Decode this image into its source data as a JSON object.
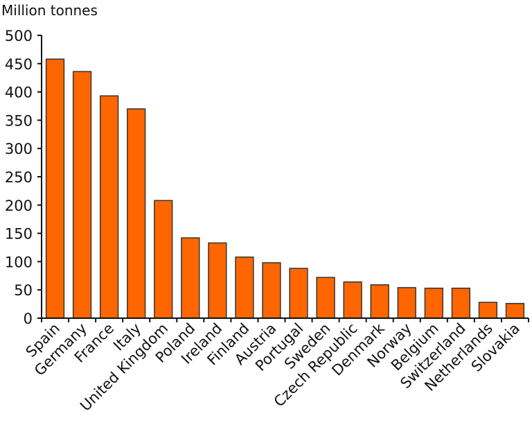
{
  "chart_data": {
    "type": "bar",
    "title": "",
    "ylabel": "Million tonnes",
    "xlabel": "",
    "ylim": [
      0,
      500
    ],
    "yticks": [
      0,
      50,
      100,
      150,
      200,
      250,
      300,
      350,
      400,
      450,
      500
    ],
    "ytick_labels": [
      "0",
      "50",
      "100",
      "150",
      "200",
      "250",
      "300",
      "350",
      "400",
      "450",
      "500"
    ],
    "categories": [
      "Spain",
      "Germany",
      "France",
      "Italy",
      "United Kingdom",
      "Poland",
      "Ireland",
      "Finland",
      "Austria",
      "Portugal",
      "Sweden",
      "Czech Republic",
      "Denmark",
      "Norway",
      "Belgium",
      "Switzerland",
      "Netherlands",
      "Slovakia"
    ],
    "values": [
      458,
      436,
      393,
      370,
      208,
      142,
      133,
      108,
      98,
      88,
      72,
      64,
      59,
      54,
      53,
      53,
      28,
      26
    ],
    "grid": false,
    "legend": "none",
    "bar_color": "#ff6600",
    "bar_edge_color": "#333333"
  }
}
